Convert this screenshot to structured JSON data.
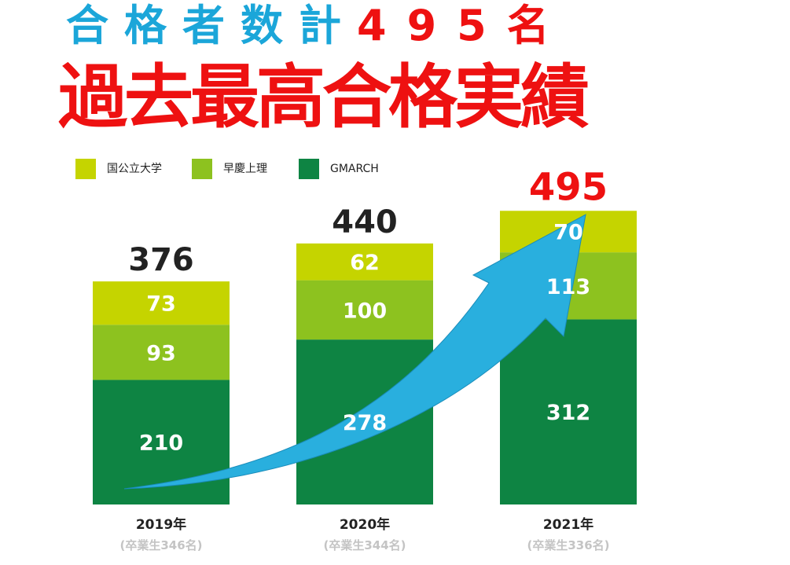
{
  "header": {
    "line1_part1": "合格者数計",
    "line1_part2": "495名",
    "line2": "過去最高合格実績"
  },
  "colors": {
    "blue": "#1ba6d9",
    "red": "#ee1111",
    "kokkouritsu": "#c5d400",
    "soukeijouri": "#8dc21f",
    "gmarch": "#0e8443",
    "arrow": "#29afde"
  },
  "chart_data": {
    "type": "bar",
    "stacked": true,
    "categories": [
      "2019年",
      "2020年",
      "2021年"
    ],
    "subcategories": [
      "(卒業生346名)",
      "(卒業生344名)",
      "(卒業生336名)"
    ],
    "series": [
      {
        "name": "GMARCH",
        "values": [
          210,
          278,
          312
        ],
        "color": "#0e8443"
      },
      {
        "name": "早慶上理",
        "values": [
          93,
          100,
          113
        ],
        "color": "#8dc21f"
      },
      {
        "name": "国公立大学",
        "values": [
          73,
          62,
          70
        ],
        "color": "#c5d400"
      }
    ],
    "totals": [
      "376",
      "440",
      "495"
    ],
    "total_colors": [
      "#222222",
      "#222222",
      "#ee1111"
    ],
    "legend": [
      "国公立大学",
      "早慶上理",
      "GMARCH"
    ],
    "legend_position": "top-left",
    "grid": false,
    "annotation": "blue upward arrow"
  }
}
